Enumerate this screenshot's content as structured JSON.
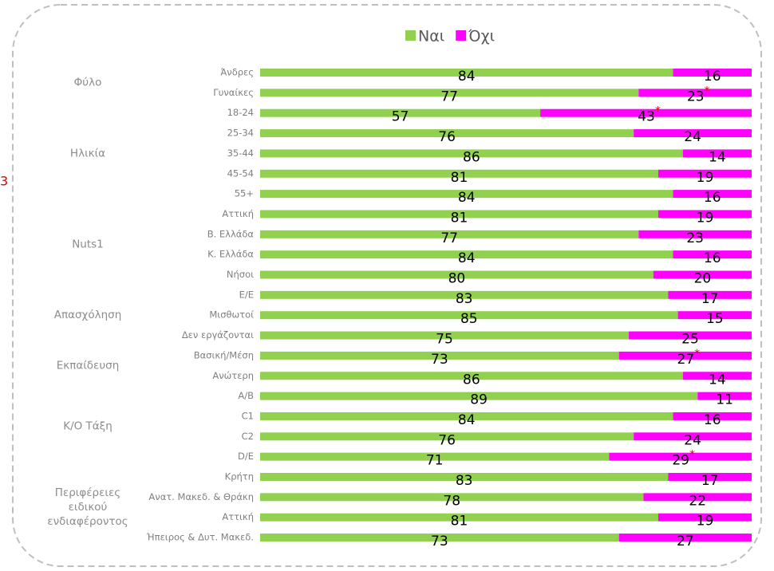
{
  "chart_data": {
    "type": "bar",
    "orientation": "horizontal",
    "stacked": true,
    "annotation": "3",
    "categories": [
      "Άνδρες",
      "Γυναίκες",
      "18-24",
      "25-34",
      "35-44",
      "45-54",
      "55+",
      "Αττική",
      "Β. Ελλάδα",
      "Κ. Ελλάδα",
      "Νήσοι",
      "Ε/Ε",
      "Μισθωτοί",
      "Δεν εργάζονται",
      "Βασική/Μέση",
      "Ανώτερη",
      "Α/Β",
      "C1",
      "C2",
      "D/E",
      "Κρήτη",
      "Ανατ. Μακεδ. & Θράκη",
      "Αττική",
      "Ήπειρος & Δυτ. Μακεδ."
    ],
    "groups": [
      {
        "lines": [
          "Φύλο"
        ],
        "count": 2
      },
      {
        "lines": [
          "Ηλικία"
        ],
        "count": 5
      },
      {
        "lines": [
          "Nuts1"
        ],
        "count": 4
      },
      {
        "lines": [
          "Απασχόληση"
        ],
        "count": 3
      },
      {
        "lines": [
          "Εκπαίδευση"
        ],
        "count": 2
      },
      {
        "lines": [
          "Κ/Ο Τάξη"
        ],
        "count": 4
      },
      {
        "lines": [
          "Περιφέρειες",
          "ειδικού",
          "ενδιαφέροντος"
        ],
        "count": 4
      }
    ],
    "series": [
      {
        "name": "Ναι",
        "color": "#92d050",
        "values": [
          84,
          77,
          57,
          76,
          86,
          81,
          84,
          81,
          77,
          84,
          80,
          83,
          85,
          75,
          73,
          86,
          89,
          84,
          76,
          71,
          83,
          78,
          81,
          73
        ]
      },
      {
        "name": "Όχι",
        "color": "#ff00ff",
        "values": [
          16,
          23,
          43,
          24,
          14,
          19,
          16,
          19,
          23,
          16,
          20,
          17,
          15,
          25,
          27,
          14,
          11,
          16,
          24,
          29,
          17,
          22,
          19,
          27
        ],
        "value_labels": [
          "16",
          "23*",
          "43*",
          "24",
          "14",
          "19",
          "16",
          "19",
          "23",
          "16",
          "20",
          "17",
          "15",
          "25",
          "27*",
          "14",
          "11",
          "16",
          "24",
          "29*",
          "17",
          "22",
          "19",
          "27"
        ]
      }
    ],
    "xlim": [
      0,
      100
    ]
  }
}
